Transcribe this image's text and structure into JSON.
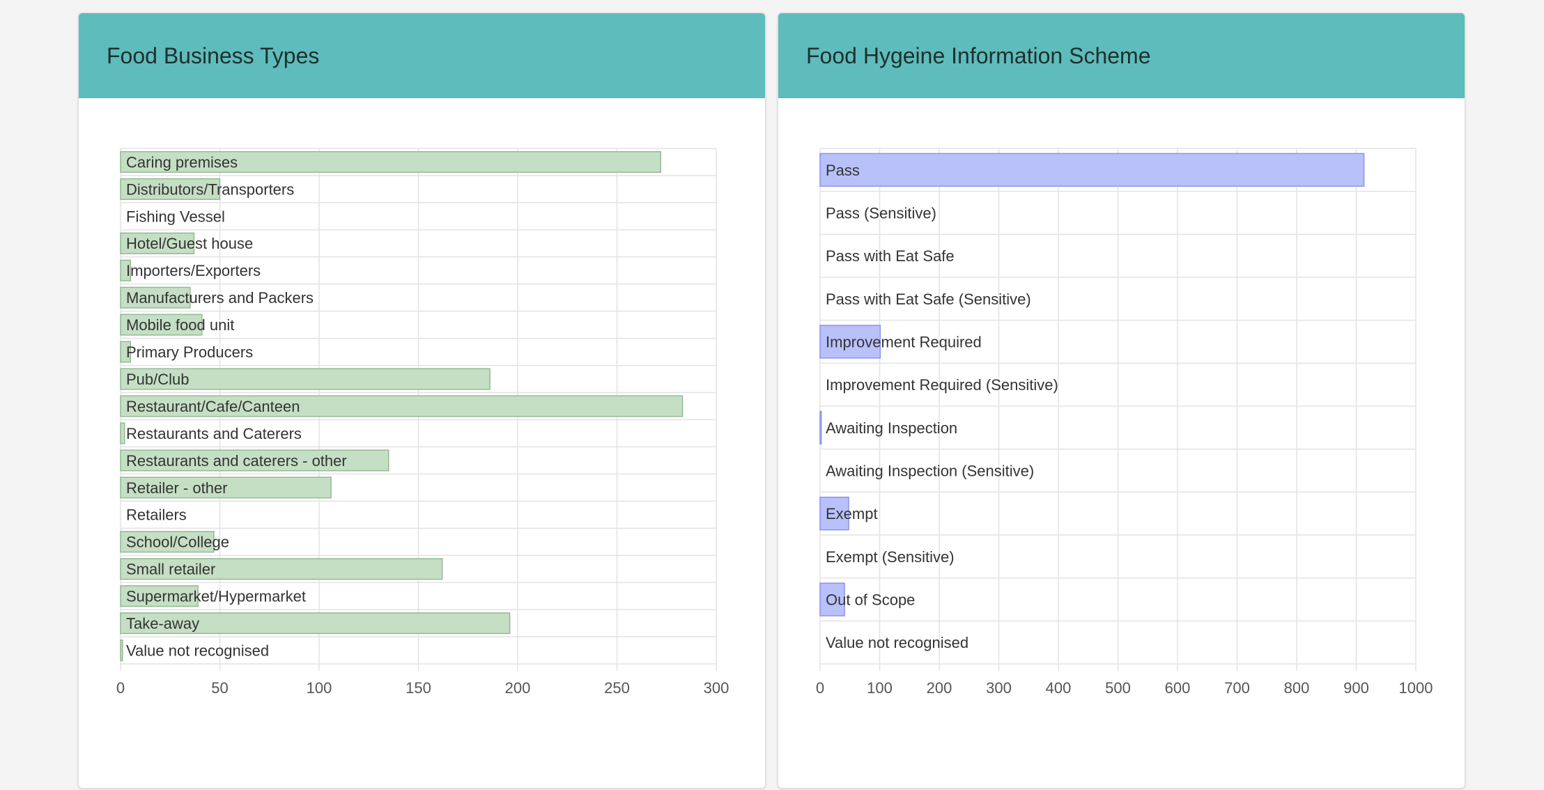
{
  "panels": {
    "left": {
      "title": "Food Business Types"
    },
    "right": {
      "title": "Food Hygeine Information Scheme"
    }
  },
  "chart_data": [
    {
      "type": "bar",
      "orientation": "horizontal",
      "title": "Food Business Types",
      "categories": [
        "Caring premises",
        "Distributors/Transporters",
        "Fishing Vessel",
        "Hotel/Guest house",
        "Importers/Exporters",
        "Manufacturers and Packers",
        "Mobile food unit",
        "Primary Producers",
        "Pub/Club",
        "Restaurant/Cafe/Canteen",
        "Restaurants and Caterers",
        "Restaurants and caterers - other",
        "Retailer - other",
        "Retailers",
        "School/College",
        "Small retailer",
        "Supermarket/Hypermarket",
        "Take-away",
        "Value not recognised"
      ],
      "values": [
        272,
        50,
        0,
        37,
        5,
        35,
        41,
        5,
        186,
        283,
        2,
        135,
        106,
        0,
        47,
        162,
        39,
        196,
        1
      ],
      "xlim": [
        0,
        300
      ],
      "ticks": [
        "0",
        "50",
        "100",
        "150",
        "200",
        "250",
        "300"
      ],
      "tick_values": [
        0,
        50,
        100,
        150,
        200,
        250,
        300
      ],
      "grid": true,
      "colors": {
        "fill": "#c5dfc5",
        "stroke": "#95b995"
      }
    },
    {
      "type": "bar",
      "orientation": "horizontal",
      "title": "Food Hygeine Information Scheme",
      "categories": [
        "Pass",
        "Pass (Sensitive)",
        "Pass with Eat Safe",
        "Pass with Eat Safe (Sensitive)",
        "Improvement Required",
        "Improvement Required (Sensitive)",
        "Awaiting Inspection",
        "Awaiting Inspection (Sensitive)",
        "Exempt",
        "Exempt (Sensitive)",
        "Out of Scope",
        "Value not recognised"
      ],
      "values": [
        913,
        0,
        0,
        0,
        101,
        0,
        2,
        0,
        48,
        0,
        41,
        0
      ],
      "xlim": [
        0,
        1000
      ],
      "ticks": [
        "0",
        "100",
        "200",
        "300",
        "400",
        "500",
        "600",
        "700",
        "800",
        "900",
        "1000"
      ],
      "tick_values": [
        0,
        100,
        200,
        300,
        400,
        500,
        600,
        700,
        800,
        900,
        1000
      ],
      "grid": true,
      "colors": {
        "fill": "#b9c1fb",
        "stroke": "#8a93ee"
      }
    }
  ]
}
